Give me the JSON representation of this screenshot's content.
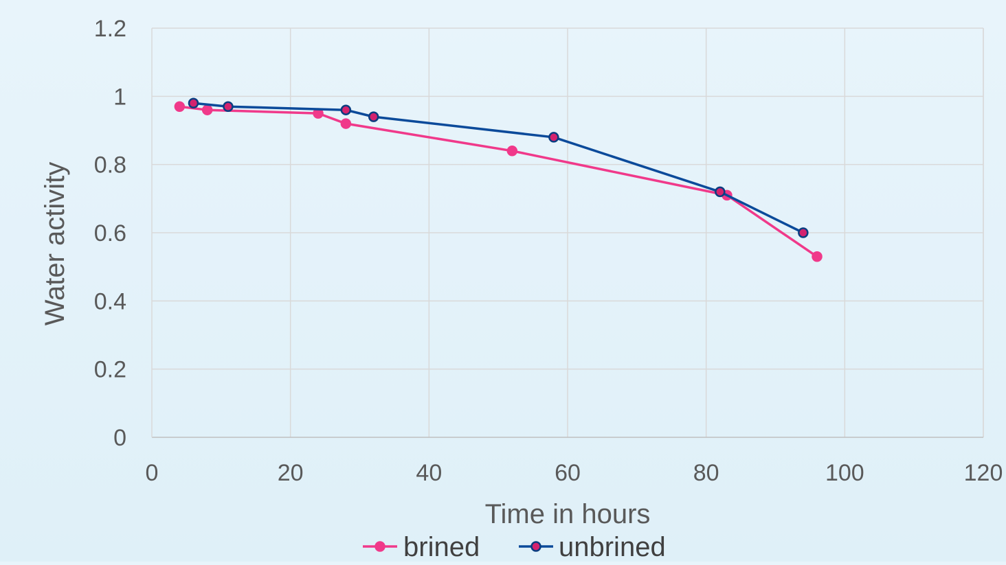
{
  "chart_data": {
    "type": "scatter",
    "xlabel": "Time in hours",
    "ylabel": "Water activity",
    "xlim": [
      0,
      120
    ],
    "ylim": [
      0,
      1.2
    ],
    "x_ticks": [
      "0",
      "20",
      "40",
      "60",
      "80",
      "100",
      "120"
    ],
    "y_ticks": [
      "0",
      "0.2",
      "0.4",
      "0.6",
      "0.8",
      "1",
      "1.2"
    ],
    "x_tick_values": [
      0,
      20,
      40,
      60,
      80,
      100,
      120
    ],
    "y_tick_values": [
      0,
      0.2,
      0.4,
      0.6,
      0.8,
      1.0,
      1.2
    ],
    "grid": true,
    "legend_position": "bottom",
    "series": [
      {
        "name": "brined",
        "color": "#f0398a",
        "marker_fill": "#f0398a",
        "marker_stroke": "#f0398a",
        "points": [
          [
            4,
            0.97
          ],
          [
            8,
            0.96
          ],
          [
            24,
            0.95
          ],
          [
            28,
            0.92
          ],
          [
            52,
            0.84
          ],
          [
            83,
            0.71
          ],
          [
            96,
            0.53
          ]
        ]
      },
      {
        "name": "unbrined",
        "color": "#0b4a9a",
        "marker_fill": "#d4236e",
        "marker_stroke": "#0b3d80",
        "points": [
          [
            6,
            0.98
          ],
          [
            11,
            0.97
          ],
          [
            28,
            0.96
          ],
          [
            32,
            0.94
          ],
          [
            58,
            0.88
          ],
          [
            82,
            0.72
          ],
          [
            94,
            0.6
          ]
        ]
      }
    ]
  }
}
